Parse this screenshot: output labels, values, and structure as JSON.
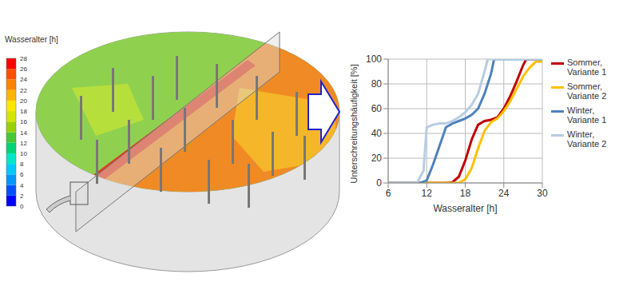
{
  "render": {
    "colorbar": {
      "title": "Wasseralter [h]",
      "range": [
        0,
        28
      ],
      "ticks": [
        0,
        2,
        4,
        6,
        8,
        10,
        12,
        14,
        16,
        18,
        20,
        22,
        24,
        26,
        28
      ]
    }
  },
  "chart_data": {
    "type": "line",
    "xlabel": "Wasseralter [h]",
    "ylabel": "Unterschreitungshäufigkeit [%]",
    "xlim": [
      6,
      30
    ],
    "xticks": [
      6,
      12,
      18,
      24,
      30
    ],
    "ylim": [
      0,
      100
    ],
    "yticks": [
      0,
      20,
      40,
      60,
      80,
      100
    ],
    "grid": true,
    "legend": "right",
    "series": [
      {
        "name": "Sommer, Variante 1",
        "color": "#c00000",
        "x": [
          6,
          15,
          16,
          17,
          18,
          19,
          20,
          21,
          22,
          23,
          24,
          25,
          26,
          27,
          27.5,
          30
        ],
        "values": [
          0,
          0,
          0.5,
          5,
          18,
          35,
          47,
          50,
          51,
          53,
          60,
          70,
          82,
          95,
          100,
          100
        ]
      },
      {
        "name": "Sommer, Variante 2",
        "color": "#ffc000",
        "x": [
          6,
          17,
          18,
          19,
          20,
          21,
          22,
          23,
          24,
          25,
          26,
          27,
          28,
          29,
          30
        ],
        "values": [
          0,
          0,
          3,
          12,
          28,
          42,
          49,
          52,
          58,
          66,
          76,
          86,
          93,
          98,
          98
        ]
      },
      {
        "name": "Winter, Variante 1",
        "color": "#4f81bd",
        "x": [
          6,
          11,
          12,
          13,
          14,
          15,
          16,
          17,
          18,
          19,
          20,
          21,
          22,
          22.5,
          30
        ],
        "values": [
          0,
          0,
          2,
          15,
          30,
          45,
          48,
          50,
          52,
          55,
          60,
          72,
          88,
          100,
          100
        ]
      },
      {
        "name": "Winter, Variante 2",
        "color": "#b8cce4",
        "x": [
          6,
          10.5,
          11.5,
          12,
          13,
          14,
          15,
          16,
          17,
          18,
          19,
          20,
          21,
          21.5,
          30
        ],
        "values": [
          0,
          0,
          10,
          45,
          47,
          48,
          48,
          50,
          53,
          57,
          63,
          72,
          90,
          100,
          100
        ]
      }
    ]
  }
}
